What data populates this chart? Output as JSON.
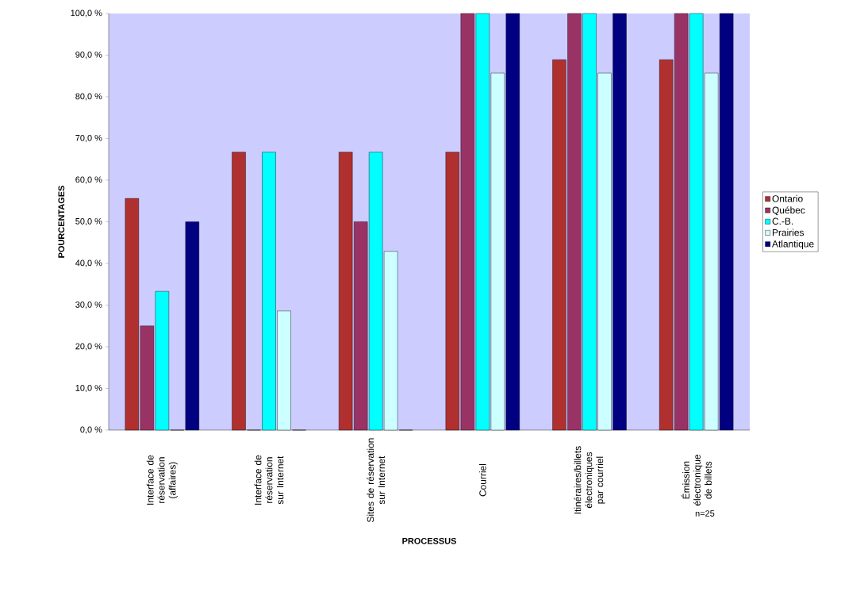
{
  "chart_data": {
    "type": "bar",
    "xlabel": "PROCESSUS",
    "ylabel": "POURCENTAGES",
    "categories": [
      "Interface de réservation (affaires)",
      "Interface de réservation sur Internet",
      "Sites de réservation sur Internet",
      "Courriel",
      "Itinéraires/billets électroniques par courriel",
      "Émission électronique de billets"
    ],
    "series": [
      {
        "name": "Ontario",
        "color": "#b03030",
        "values": [
          55.6,
          66.7,
          66.7,
          66.7,
          88.9,
          88.9
        ]
      },
      {
        "name": "Québec",
        "color": "#993366",
        "values": [
          25.0,
          0,
          50.0,
          100,
          100,
          100
        ]
      },
      {
        "name": "C.-B.",
        "color": "#00ffff",
        "values": [
          33.3,
          66.7,
          66.7,
          100,
          100,
          100
        ]
      },
      {
        "name": "Prairies",
        "color": "#ccffff",
        "values": [
          0,
          28.6,
          42.9,
          85.7,
          85.7,
          85.7
        ]
      },
      {
        "name": "Atlantique",
        "color": "#000080",
        "values": [
          50.0,
          0,
          0,
          100,
          100,
          100
        ]
      }
    ],
    "ylim": [
      0,
      100
    ],
    "yticks": [
      {
        "value": 0,
        "label": "0,0 %"
      },
      {
        "value": 10,
        "label": "10,0 %"
      },
      {
        "value": 20,
        "label": "20,0 %"
      },
      {
        "value": 30,
        "label": "30,0 %"
      },
      {
        "value": 40,
        "label": "40,0 %"
      },
      {
        "value": 50,
        "label": "50,0 %"
      },
      {
        "value": 60,
        "label": "60,0 %"
      },
      {
        "value": 70,
        "label": "70,0 %"
      },
      {
        "value": 80,
        "label": "80,0 %"
      },
      {
        "value": 90,
        "label": "90,0 %"
      },
      {
        "value": 100,
        "label": "100,0 %"
      }
    ],
    "legend": "right",
    "annotations": [
      "n=25"
    ]
  }
}
